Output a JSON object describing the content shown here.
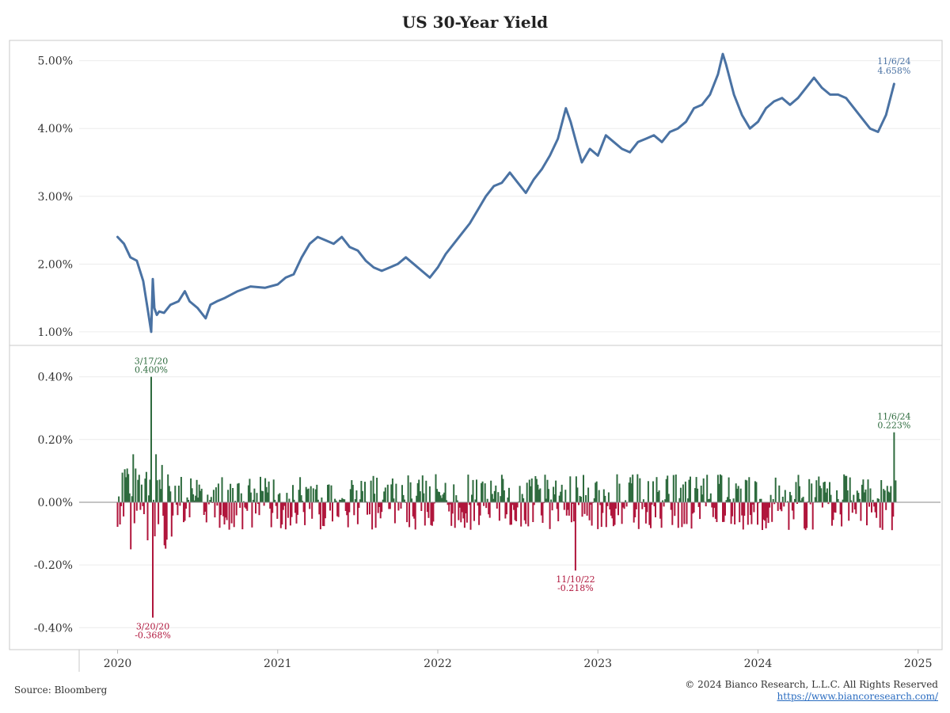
{
  "chart_data": [
    {
      "type": "line",
      "title": "US 30-Year Yield",
      "y_ticks": [
        "5.00%",
        "4.00%",
        "3.00%",
        "2.00%",
        "1.00%"
      ],
      "y_tick_values": [
        5.0,
        4.0,
        3.0,
        2.0,
        1.0
      ],
      "ylim": [
        0.8,
        5.3
      ],
      "x_ticks": [
        "2020",
        "2021",
        "2022",
        "2023",
        "2024",
        "2025"
      ],
      "x_tick_values": [
        2020.0,
        2021.0,
        2022.0,
        2023.0,
        2024.0,
        2025.0
      ],
      "xlim": [
        2019.76,
        2025.14
      ],
      "series": [
        {
          "color": "#4a72a3",
          "x": [
            2020.0,
            2020.04,
            2020.08,
            2020.12,
            2020.16,
            2020.19,
            2020.21,
            2020.22,
            2020.23,
            2020.245,
            2020.26,
            2020.29,
            2020.33,
            2020.38,
            2020.42,
            2020.45,
            2020.5,
            2020.55,
            2020.58,
            2020.62,
            2020.67,
            2020.75,
            2020.83,
            2020.92,
            2021.0,
            2021.05,
            2021.1,
            2021.15,
            2021.2,
            2021.25,
            2021.3,
            2021.35,
            2021.4,
            2021.45,
            2021.5,
            2021.55,
            2021.6,
            2021.65,
            2021.7,
            2021.75,
            2021.8,
            2021.85,
            2021.9,
            2021.95,
            2022.0,
            2022.05,
            2022.1,
            2022.15,
            2022.2,
            2022.25,
            2022.3,
            2022.35,
            2022.4,
            2022.45,
            2022.5,
            2022.55,
            2022.6,
            2022.65,
            2022.7,
            2022.75,
            2022.8,
            2022.83,
            2022.87,
            2022.9,
            2022.95,
            2023.0,
            2023.05,
            2023.1,
            2023.15,
            2023.2,
            2023.25,
            2023.3,
            2023.35,
            2023.4,
            2023.45,
            2023.5,
            2023.55,
            2023.6,
            2023.65,
            2023.7,
            2023.75,
            2023.78,
            2023.8,
            2023.85,
            2023.9,
            2023.95,
            2024.0,
            2024.05,
            2024.1,
            2024.15,
            2024.2,
            2024.25,
            2024.3,
            2024.35,
            2024.4,
            2024.45,
            2024.5,
            2024.55,
            2024.6,
            2024.65,
            2024.7,
            2024.75,
            2024.8,
            2024.85
          ],
          "y": [
            2.4,
            2.3,
            2.1,
            2.05,
            1.75,
            1.3,
            1.0,
            1.78,
            1.35,
            1.25,
            1.3,
            1.28,
            1.4,
            1.45,
            1.6,
            1.45,
            1.35,
            1.2,
            1.4,
            1.45,
            1.5,
            1.6,
            1.67,
            1.65,
            1.7,
            1.8,
            1.85,
            2.1,
            2.3,
            2.4,
            2.35,
            2.3,
            2.4,
            2.25,
            2.2,
            2.05,
            1.95,
            1.9,
            1.95,
            2.0,
            2.1,
            2.0,
            1.9,
            1.8,
            1.95,
            2.15,
            2.3,
            2.45,
            2.6,
            2.8,
            3.0,
            3.15,
            3.2,
            3.35,
            3.2,
            3.05,
            3.25,
            3.4,
            3.6,
            3.85,
            4.3,
            4.1,
            3.75,
            3.5,
            3.7,
            3.6,
            3.9,
            3.8,
            3.7,
            3.65,
            3.8,
            3.85,
            3.9,
            3.8,
            3.95,
            4.0,
            4.1,
            4.3,
            4.35,
            4.5,
            4.8,
            5.1,
            4.95,
            4.5,
            4.2,
            4.0,
            4.1,
            4.3,
            4.4,
            4.45,
            4.35,
            4.45,
            4.6,
            4.75,
            4.6,
            4.5,
            4.5,
            4.45,
            4.3,
            4.15,
            4.0,
            3.95,
            4.2,
            4.658
          ]
        }
      ],
      "annotations": [
        {
          "date": "11/6/24",
          "value": "4.658%",
          "x": 2024.85,
          "y": 4.658
        }
      ]
    },
    {
      "type": "bar",
      "y_ticks": [
        "0.40%",
        "0.20%",
        "0.00%",
        "-0.20%",
        "-0.40%"
      ],
      "y_tick_values": [
        0.4,
        0.2,
        0.0,
        -0.2,
        -0.4
      ],
      "ylim": [
        -0.47,
        0.5
      ],
      "positive_color": "#2e6b3e",
      "negative_color": "#b0163c",
      "bars": [
        {
          "x": 2020.21,
          "y": 0.4
        },
        {
          "x": 2020.22,
          "y": -0.368
        },
        {
          "x": 2022.86,
          "y": -0.218
        },
        {
          "x": 2024.85,
          "y": 0.223
        }
      ],
      "annotations": [
        {
          "date": "3/17/20",
          "value": "0.400%",
          "x": 2020.21,
          "y": 0.4,
          "color": "#2e6b3e"
        },
        {
          "date": "3/20/20",
          "value": "-0.368%",
          "x": 2020.22,
          "y": -0.368,
          "color": "#b0163c"
        },
        {
          "date": "11/10/22",
          "value": "-0.218%",
          "x": 2022.86,
          "y": -0.218,
          "color": "#b0163c"
        },
        {
          "date": "11/6/24",
          "value": "0.223%",
          "x": 2024.85,
          "y": 0.223,
          "color": "#2e6b3e"
        }
      ]
    }
  ],
  "footer": {
    "source": "Source: Bloomberg",
    "copyright": "© 2024 Bianco Research, L.L.C. All Rights Reserved",
    "website": "https://www.biancoresearch.com/"
  }
}
